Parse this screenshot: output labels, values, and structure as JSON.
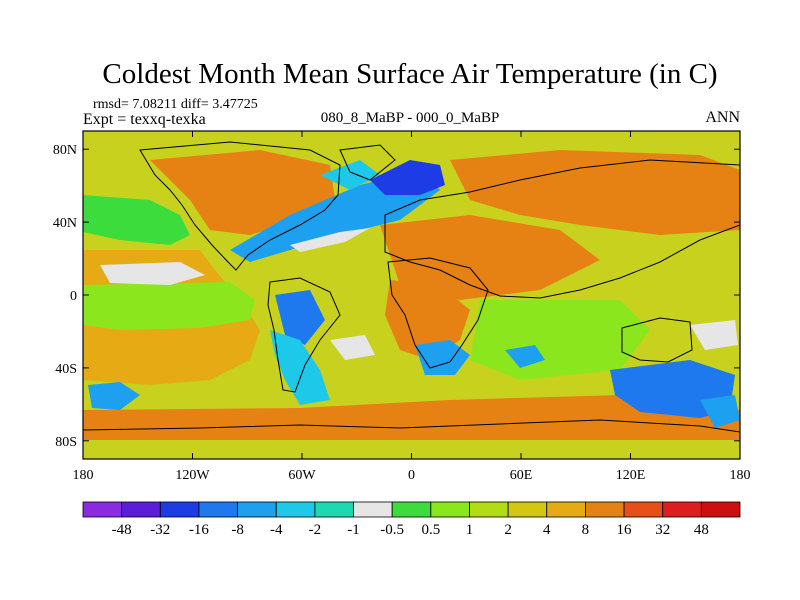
{
  "chart_data": {
    "type": "heatmap",
    "title": "Coldest Month Mean Surface Air Temperature (in C)",
    "stats_line": "rmsd= 7.08211 diff= 3.47725",
    "expt_label": "Expt = texxq-texka",
    "center_label": "080_8_MaBP - 000_0_MaBP",
    "season_label": "ANN",
    "x_range": [
      -180,
      180
    ],
    "y_range": [
      -90,
      90
    ],
    "x_ticks": [
      {
        "value": -180,
        "label": "180"
      },
      {
        "value": -120,
        "label": "120W"
      },
      {
        "value": -60,
        "label": "60W"
      },
      {
        "value": 0,
        "label": "0"
      },
      {
        "value": 60,
        "label": "60E"
      },
      {
        "value": 120,
        "label": "120E"
      },
      {
        "value": 180,
        "label": "180"
      }
    ],
    "y_ticks": [
      {
        "value": 80,
        "label": "80N"
      },
      {
        "value": 40,
        "label": "40N"
      },
      {
        "value": 0,
        "label": "0"
      },
      {
        "value": -40,
        "label": "40S"
      },
      {
        "value": -80,
        "label": "80S"
      }
    ],
    "colorbar": {
      "levels": [
        "-48",
        "-32",
        "-16",
        "-8",
        "-4",
        "-2",
        "-1",
        "-0.5",
        "0.5",
        "1",
        "2",
        "4",
        "8",
        "16",
        "32",
        "48"
      ],
      "colors": [
        "#8a2be2",
        "#5a1ed8",
        "#1e3ce6",
        "#1e78ee",
        "#1ea0f0",
        "#1ec8e8",
        "#1ed8b4",
        "#e6e6e6",
        "#3cdc3c",
        "#8ce61e",
        "#b4dc14",
        "#d2c814",
        "#e6aa14",
        "#e68214",
        "#e65014",
        "#dc1e1e",
        "#cc0f0f"
      ]
    },
    "regions": [
      {
        "name": "background",
        "color": "#c8d21e"
      },
      {
        "name": "pacific-warm",
        "color": "#e6aa14"
      },
      {
        "name": "tropical-pacific-green",
        "color": "#8ce61e"
      },
      {
        "name": "north-pacific-green",
        "color": "#3cdc3c"
      },
      {
        "name": "southern-ocean-orange",
        "color": "#e68214"
      },
      {
        "name": "north-america-orange",
        "color": "#e68214"
      },
      {
        "name": "siberia-orange",
        "color": "#e68214"
      },
      {
        "name": "atlantic-cold",
        "color": "#1ea0f0"
      },
      {
        "name": "arctic-cold-core",
        "color": "#1e3ce6"
      },
      {
        "name": "labrador-cold",
        "color": "#1ec8e8"
      },
      {
        "name": "south-america-cold",
        "color": "#1e78ee"
      },
      {
        "name": "africa-cold",
        "color": "#1ea0f0"
      },
      {
        "name": "australia-cold",
        "color": "#1e78ee"
      },
      {
        "name": "antarctic-coast-cold",
        "color": "#1ea0f0"
      },
      {
        "name": "white-patches",
        "color": "#e6e6e6"
      }
    ]
  }
}
